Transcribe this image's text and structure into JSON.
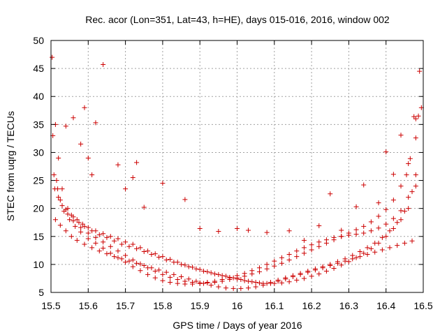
{
  "chart_data": {
    "type": "scatter",
    "title": "Rec. acor (Lon=351, Lat=43, h=HE), days 015-016, 2016, window 002",
    "xlabel": "GPS time / Days of year 2016",
    "ylabel": "STEC from uqrg / TECUs",
    "xlim": [
      15.5,
      16.5
    ],
    "ylim": [
      5,
      50
    ],
    "xticks": [
      "15.5",
      "15.6",
      "15.7",
      "15.8",
      "15.9",
      "16",
      "16.1",
      "16.2",
      "16.3",
      "16.4",
      "16.5"
    ],
    "yticks": [
      "5",
      "10",
      "15",
      "20",
      "25",
      "30",
      "35",
      "40",
      "45",
      "50"
    ],
    "grid": true,
    "marker": "plus",
    "color": "#cc0000",
    "series": [
      {
        "x": [
          15.503,
          15.512,
          15.52,
          15.53,
          15.545,
          15.56,
          15.575,
          15.59,
          15.61,
          15.63,
          15.65,
          15.67,
          15.69,
          15.71,
          15.73,
          15.75,
          15.77,
          15.79,
          15.81,
          15.83,
          15.85,
          15.87,
          15.89,
          15.91,
          15.93,
          15.95,
          15.97,
          15.99,
          16.01,
          16.03,
          16.05,
          16.07,
          16.09,
          16.11,
          16.13,
          16.15,
          16.17,
          16.19,
          16.21,
          16.23,
          16.25,
          16.27,
          16.29,
          16.31,
          16.33,
          16.35,
          16.37,
          16.39,
          16.41,
          16.43,
          16.45,
          16.47,
          16.49
        ],
        "y": [
          47.0,
          35.0,
          29.0,
          23.5,
          20.0,
          18.5,
          17.5,
          16.8,
          16.0,
          15.3,
          14.8,
          14.2,
          13.6,
          13.2,
          12.8,
          12.3,
          11.8,
          11.3,
          10.8,
          10.4,
          10.0,
          9.6,
          9.2,
          8.8,
          8.5,
          8.2,
          7.9,
          7.6,
          7.3,
          7.0,
          6.8,
          6.6,
          6.8,
          7.2,
          7.6,
          8.0,
          8.4,
          8.8,
          9.2,
          9.6,
          10.0,
          10.5,
          11.0,
          11.6,
          12.3,
          13.0,
          13.8,
          14.8,
          16.0,
          17.5,
          19.5,
          23.0,
          44.5
        ]
      },
      {
        "x": [
          15.505,
          15.515,
          15.525,
          15.54,
          15.555,
          15.57,
          15.585,
          15.6,
          15.62,
          15.64,
          15.66,
          15.68,
          15.7,
          15.72,
          15.74,
          15.76,
          15.78,
          15.8,
          15.82,
          15.84,
          15.86,
          15.88,
          15.9,
          15.92,
          15.94,
          15.96,
          15.98,
          16.0,
          16.02,
          16.04,
          16.06,
          16.08,
          16.1,
          16.12,
          16.14,
          16.16,
          16.18,
          16.2,
          16.22,
          16.24,
          16.26,
          16.28,
          16.3,
          16.32,
          16.34,
          16.36,
          16.38,
          16.4,
          16.42,
          16.44,
          16.46,
          16.48,
          16.495
        ],
        "y": [
          33.0,
          25.0,
          21.5,
          19.8,
          18.8,
          18.0,
          17.2,
          16.6,
          16.0,
          15.5,
          15.0,
          14.6,
          14.0,
          13.6,
          13.0,
          12.4,
          11.9,
          11.4,
          10.9,
          10.4,
          9.9,
          9.5,
          9.1,
          8.7,
          8.3,
          8.0,
          7.7,
          7.4,
          7.1,
          6.9,
          6.7,
          6.6,
          6.6,
          6.7,
          6.9,
          7.2,
          7.5,
          7.9,
          8.3,
          8.8,
          9.3,
          9.9,
          10.5,
          11.2,
          12.0,
          12.8,
          13.8,
          15.0,
          16.4,
          18.0,
          20.0,
          24.0,
          38.0
        ]
      },
      {
        "x": [
          15.508,
          15.518,
          15.53,
          15.545,
          15.56,
          15.58,
          15.6,
          15.62,
          15.64,
          15.66,
          15.68,
          15.7,
          15.72,
          15.74,
          15.76,
          15.78,
          15.8,
          15.82,
          15.84,
          15.86,
          15.88,
          15.9,
          15.92,
          15.94,
          15.96,
          15.98,
          16.0,
          16.02,
          16.04,
          16.06,
          16.08,
          16.1,
          16.12,
          16.14,
          16.16,
          16.18,
          16.2,
          16.22,
          16.24,
          16.26,
          16.28,
          16.3,
          16.32,
          16.34,
          16.36,
          16.38,
          16.4,
          16.42,
          16.44,
          16.46,
          16.48
        ],
        "y": [
          26.0,
          23.5,
          20.5,
          19.0,
          17.8,
          16.6,
          15.6,
          14.8,
          14.0,
          13.2,
          12.4,
          11.6,
          10.8,
          10.1,
          9.4,
          8.8,
          8.2,
          7.7,
          7.3,
          7.0,
          6.8,
          6.7,
          6.7,
          6.8,
          7.0,
          7.3,
          7.6,
          7.9,
          8.3,
          8.7,
          9.2,
          9.7,
          10.2,
          10.8,
          11.4,
          12.0,
          12.6,
          13.2,
          13.8,
          14.4,
          15.0,
          15.6,
          16.2,
          16.8,
          17.6,
          18.6,
          19.8,
          21.5,
          24.0,
          28.0,
          36.0
        ]
      },
      {
        "x": [
          15.51,
          15.52,
          15.535,
          15.55,
          15.565,
          15.58,
          15.6,
          15.62,
          15.64,
          15.66,
          15.68,
          15.7,
          15.72,
          15.74,
          15.76,
          15.78,
          15.8,
          15.82,
          15.84,
          15.86,
          15.88,
          15.9,
          15.92,
          15.94,
          15.96,
          15.98,
          16.0,
          16.02,
          16.04,
          16.06,
          16.08,
          16.1,
          16.12,
          16.14,
          16.16,
          16.18,
          16.2,
          16.22,
          16.24,
          16.26,
          16.28,
          16.3,
          16.32,
          16.34,
          16.36,
          16.38,
          16.4,
          16.42,
          16.44,
          16.46,
          16.48
        ],
        "y": [
          23.5,
          22.0,
          19.5,
          18.0,
          16.8,
          15.8,
          14.6,
          13.8,
          12.9,
          12.0,
          11.2,
          10.4,
          9.6,
          8.9,
          8.2,
          7.6,
          7.1,
          6.8,
          6.6,
          6.5,
          6.5,
          6.6,
          6.8,
          7.0,
          7.3,
          7.6,
          8.0,
          8.4,
          8.9,
          9.4,
          10.0,
          10.6,
          11.2,
          11.8,
          12.4,
          13.0,
          13.5,
          14.0,
          14.4,
          14.8,
          15.0,
          15.2,
          15.4,
          15.6,
          16.0,
          16.5,
          17.2,
          18.2,
          19.6,
          22.0,
          26.0
        ]
      },
      {
        "x": [
          15.512,
          15.525,
          15.54,
          15.555,
          15.57,
          15.59,
          15.61,
          15.63,
          15.65,
          15.67,
          15.69,
          15.71,
          15.73,
          15.75,
          15.77,
          15.79,
          15.81,
          15.83,
          15.85,
          15.87,
          15.89,
          15.91,
          15.93,
          15.95,
          15.97,
          15.99,
          16.01,
          16.03,
          16.05,
          16.07,
          16.09,
          16.11,
          16.13,
          16.15,
          16.17,
          16.19,
          16.21,
          16.23,
          16.25,
          16.27,
          16.29,
          16.31,
          16.33,
          16.35,
          16.37,
          16.39,
          16.41,
          16.43,
          16.45,
          16.47
        ],
        "y": [
          18.0,
          17.0,
          16.0,
          15.0,
          14.3,
          13.6,
          13.0,
          12.4,
          11.9,
          11.4,
          11.0,
          10.6,
          10.2,
          9.8,
          9.4,
          9.0,
          8.6,
          8.2,
          7.8,
          7.4,
          7.0,
          6.6,
          6.3,
          6.0,
          5.8,
          5.7,
          5.7,
          5.8,
          6.0,
          6.3,
          6.6,
          7.0,
          7.4,
          7.8,
          8.2,
          8.6,
          9.0,
          9.4,
          9.8,
          10.2,
          10.6,
          11.0,
          11.4,
          11.8,
          12.2,
          12.6,
          13.0,
          13.4,
          13.8,
          14.2
        ]
      },
      {
        "x": [
          15.54,
          15.56,
          15.58,
          15.59,
          15.6,
          15.61,
          15.62,
          15.64,
          15.68,
          15.7,
          15.72,
          15.73,
          15.75,
          15.8,
          15.86,
          15.9,
          15.95,
          16.0,
          16.03,
          16.08,
          16.14,
          16.18,
          16.22,
          16.25,
          16.28,
          16.32,
          16.34,
          16.38,
          16.4,
          16.42,
          16.44,
          16.455,
          16.465,
          16.475,
          16.48,
          16.487
        ],
        "y": [
          34.7,
          36.2,
          31.5,
          38.0,
          29.0,
          26.0,
          35.3,
          45.7,
          27.8,
          23.5,
          25.5,
          28.2,
          20.2,
          24.5,
          21.6,
          16.4,
          15.9,
          16.4,
          16.1,
          15.7,
          16.0,
          14.3,
          16.9,
          22.6,
          16.1,
          20.3,
          24.2,
          21.0,
          30.1,
          26.1,
          33.1,
          26.0,
          28.9,
          36.4,
          32.6,
          36.5
        ]
      }
    ]
  }
}
